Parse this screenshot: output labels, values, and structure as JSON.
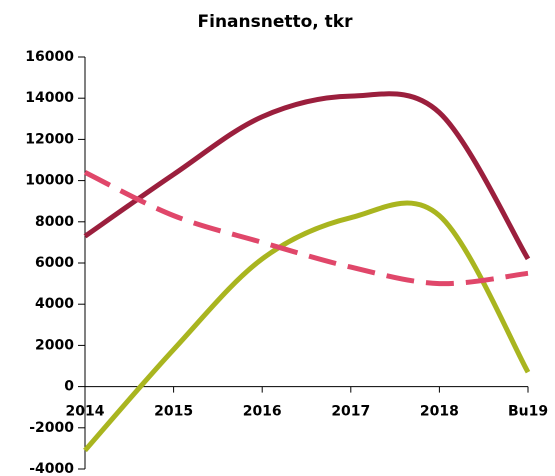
{
  "chart_data": {
    "type": "line",
    "title": "Finansnetto, tkr",
    "categories": [
      "2014",
      "2015",
      "2016",
      "2017",
      "2018",
      "Bu19"
    ],
    "series": [
      {
        "color": "#9b1f3d",
        "dashed": false,
        "values": [
          7300,
          10300,
          13100,
          14100,
          13300,
          6200
        ]
      },
      {
        "color": "#a9b51f",
        "dashed": false,
        "values": [
          -3100,
          1800,
          6200,
          8200,
          8300,
          700
        ]
      },
      {
        "color": "#e0476a",
        "dashed": true,
        "values": [
          10400,
          8300,
          7000,
          5800,
          5000,
          5500
        ]
      }
    ],
    "smooth": true,
    "ylim": [
      -4000,
      16000
    ],
    "yticks": [
      -4000,
      -2000,
      0,
      2000,
      4000,
      6000,
      8000,
      10000,
      12000,
      14000,
      16000
    ]
  }
}
